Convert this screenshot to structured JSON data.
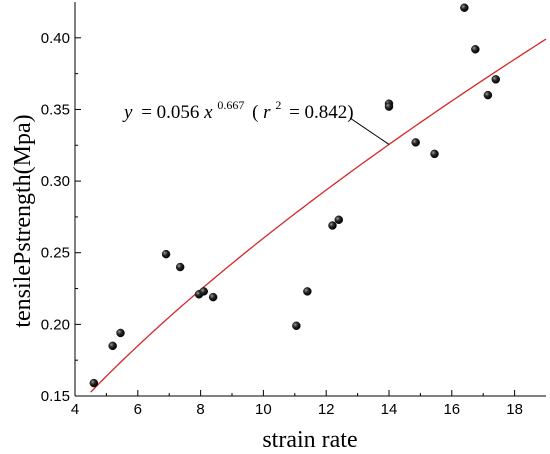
{
  "chart_data": {
    "type": "scatter",
    "xlabel": "strain rate",
    "ylabel": "tensilePstrength(Mpa)",
    "xlim": [
      4,
      19
    ],
    "ylim": [
      0.15,
      0.425
    ],
    "x_ticks": [
      4,
      6,
      8,
      10,
      12,
      14,
      16,
      18
    ],
    "x_tick_labels": [
      "4",
      "6",
      "8",
      "10",
      "12",
      "14",
      "16",
      "18"
    ],
    "y_ticks": [
      0.15,
      0.2,
      0.25,
      0.3,
      0.35,
      0.4
    ],
    "y_tick_labels": [
      "0.15",
      "0.20",
      "0.25",
      "0.30",
      "0.35",
      "0.40"
    ],
    "grid": false,
    "marker_color": "#111111",
    "fit_line_color": "#d62728",
    "points": [
      {
        "x": 4.6,
        "y": 0.159
      },
      {
        "x": 5.2,
        "y": 0.185
      },
      {
        "x": 5.45,
        "y": 0.194
      },
      {
        "x": 6.9,
        "y": 0.249
      },
      {
        "x": 7.35,
        "y": 0.24
      },
      {
        "x": 7.95,
        "y": 0.221
      },
      {
        "x": 8.1,
        "y": 0.223
      },
      {
        "x": 8.4,
        "y": 0.219
      },
      {
        "x": 11.05,
        "y": 0.199
      },
      {
        "x": 11.4,
        "y": 0.223
      },
      {
        "x": 12.2,
        "y": 0.269
      },
      {
        "x": 12.4,
        "y": 0.273
      },
      {
        "x": 14.0,
        "y": 0.354
      },
      {
        "x": 14.0,
        "y": 0.352
      },
      {
        "x": 14.85,
        "y": 0.327
      },
      {
        "x": 15.45,
        "y": 0.319
      },
      {
        "x": 16.4,
        "y": 0.421
      },
      {
        "x": 16.75,
        "y": 0.392
      },
      {
        "x": 17.15,
        "y": 0.36
      },
      {
        "x": 17.4,
        "y": 0.371
      }
    ],
    "fit": {
      "model": "power",
      "a": 0.056,
      "b": 0.667,
      "r2": 0.842,
      "x_range": [
        4.5,
        19
      ]
    },
    "annotation": {
      "y_var": "y",
      "eq_part": "= 0.056",
      "x_var": "x",
      "exponent": "0.667",
      "r_open": "(",
      "r_var": "r",
      "r_exp": "2",
      "r_value": "= 0.842)"
    }
  }
}
